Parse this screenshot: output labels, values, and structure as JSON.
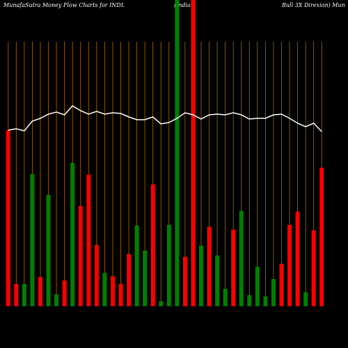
{
  "chart_data": {
    "type": "bar",
    "title_parts": [
      "MunafaSutra  Money Flow  Charts for INDL",
      "(India",
      "Bull 3X  Direxion) Mun"
    ],
    "categories": [
      null,
      null,
      null,
      null,
      null,
      null,
      null,
      null,
      null,
      null,
      null,
      null,
      null,
      null,
      null,
      null,
      null,
      null,
      null,
      null,
      null,
      null,
      null,
      null,
      null,
      null,
      null,
      null,
      null,
      null,
      null,
      null,
      null,
      null,
      null,
      null,
      null,
      null,
      null,
      null
    ],
    "ylim": [
      0,
      440
    ],
    "grid": true,
    "grid_color": "#b36b00",
    "series": [
      {
        "colors": [
          "red",
          "red",
          "green",
          "green",
          "red",
          "green",
          "green",
          "red",
          "green",
          "red",
          "red",
          "red",
          "green",
          "red",
          "red",
          "red",
          "green",
          "green",
          "red",
          "green",
          "green",
          "green",
          "red",
          "red",
          "green",
          "red",
          "green",
          "green",
          "red",
          "green",
          "green",
          "green",
          "green",
          "green",
          "red",
          "red",
          "red",
          "green",
          "red",
          "red"
        ],
        "values": [
          253,
          32,
          32,
          190,
          42,
          160,
          17,
          37,
          206,
          144,
          189,
          88,
          48,
          43,
          32,
          75,
          116,
          80,
          175,
          7,
          117,
          440,
          71,
          440,
          87,
          114,
          73,
          25,
          110,
          137,
          16,
          57,
          14,
          39,
          61,
          117,
          136,
          20,
          109,
          199
        ]
      },
      {
        "type": "line",
        "color": "#ffffff",
        "values": [
          253,
          255,
          252,
          266,
          270,
          276,
          279,
          275,
          288,
          281,
          276,
          280,
          276,
          278,
          277,
          272,
          268,
          268,
          272,
          262,
          264,
          270,
          278,
          275,
          269,
          275,
          276,
          275,
          278,
          275,
          269,
          270,
          270,
          275,
          276,
          270,
          263,
          258,
          263,
          251
        ]
      }
    ]
  }
}
